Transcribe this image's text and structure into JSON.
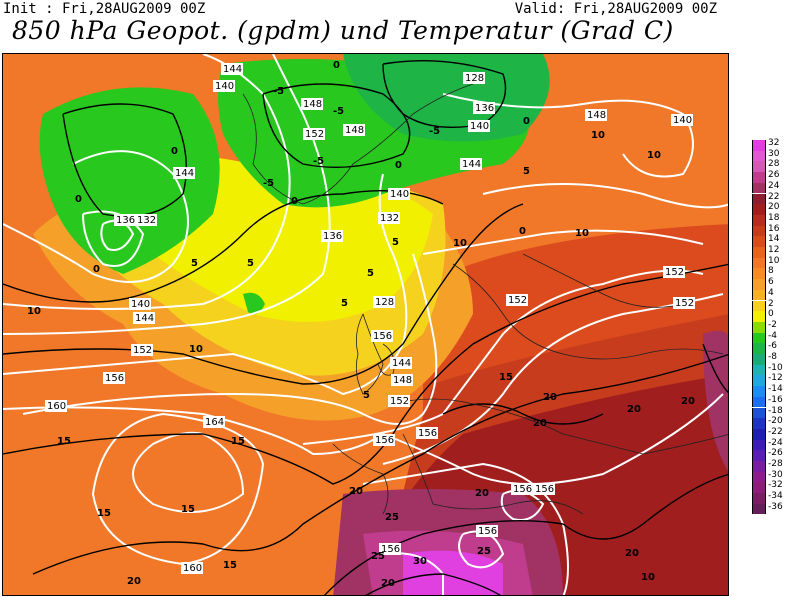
{
  "header": {
    "init": "Init : Fri,28AUG2009 00Z",
    "valid": "Valid: Fri,28AUG2009 00Z",
    "title": "850 hPa Geopot. (gpdm) und Temperatur (Grad C)"
  },
  "colorbar": {
    "ticks": [
      "32",
      "30",
      "28",
      "26",
      "24",
      "22",
      "20",
      "18",
      "16",
      "14",
      "12",
      "10",
      "8",
      "6",
      "4",
      "2",
      "0",
      "-2",
      "-4",
      "-6",
      "-8",
      "-10",
      "-12",
      "-14",
      "-16",
      "-18",
      "-20",
      "-22",
      "-24",
      "-26",
      "-28",
      "-30",
      "-32",
      "-34",
      "-36"
    ],
    "colors": [
      "#e040e0",
      "#e05ad2",
      "#d25ab4",
      "#c03c8c",
      "#a03264",
      "#8c1e32",
      "#a01e1e",
      "#b42d1e",
      "#c83c1e",
      "#dc4b1e",
      "#e6641e",
      "#f07828",
      "#f58c28",
      "#f5a028",
      "#f5b41e",
      "#f5d21e",
      "#f0f000",
      "#8cdc00",
      "#28c81e",
      "#1eb446",
      "#1eaa78",
      "#1eb4b4",
      "#1eaadc",
      "#1e8cf0",
      "#1e6ef0",
      "#1e50dc",
      "#1e32c8",
      "#1e1eb4",
      "#3c1eb4",
      "#5a1eb4",
      "#781ea0",
      "#8c1e8c",
      "#8c1e78",
      "#781e64",
      "#641e5a"
    ]
  },
  "map": {
    "geopotential_labels": [
      "144",
      "140",
      "128",
      "136",
      "148",
      "152",
      "148",
      "140",
      "144",
      "132",
      "136",
      "132",
      "140",
      "144",
      "128",
      "156",
      "144",
      "148",
      "152",
      "148",
      "152",
      "152",
      "152",
      "140",
      "136",
      "156",
      "160",
      "164",
      "156",
      "156",
      "156",
      "156",
      "156",
      "156",
      "152",
      "160",
      "140",
      "144"
    ],
    "temperature_labels": [
      "0",
      "-5",
      "-5",
      "-5",
      "-5",
      "0",
      "5",
      "10",
      "5",
      "0",
      "10",
      "10",
      "10",
      "15",
      "10",
      "10",
      "15",
      "20",
      "20",
      "20",
      "20",
      "20",
      "20",
      "15",
      "15",
      "15",
      "15",
      "20",
      "20",
      "25",
      "25",
      "30",
      "25",
      "20",
      "10",
      "5",
      "0",
      "5",
      "-5",
      "0",
      "0",
      "0",
      "0",
      "5",
      "5",
      "5"
    ]
  }
}
